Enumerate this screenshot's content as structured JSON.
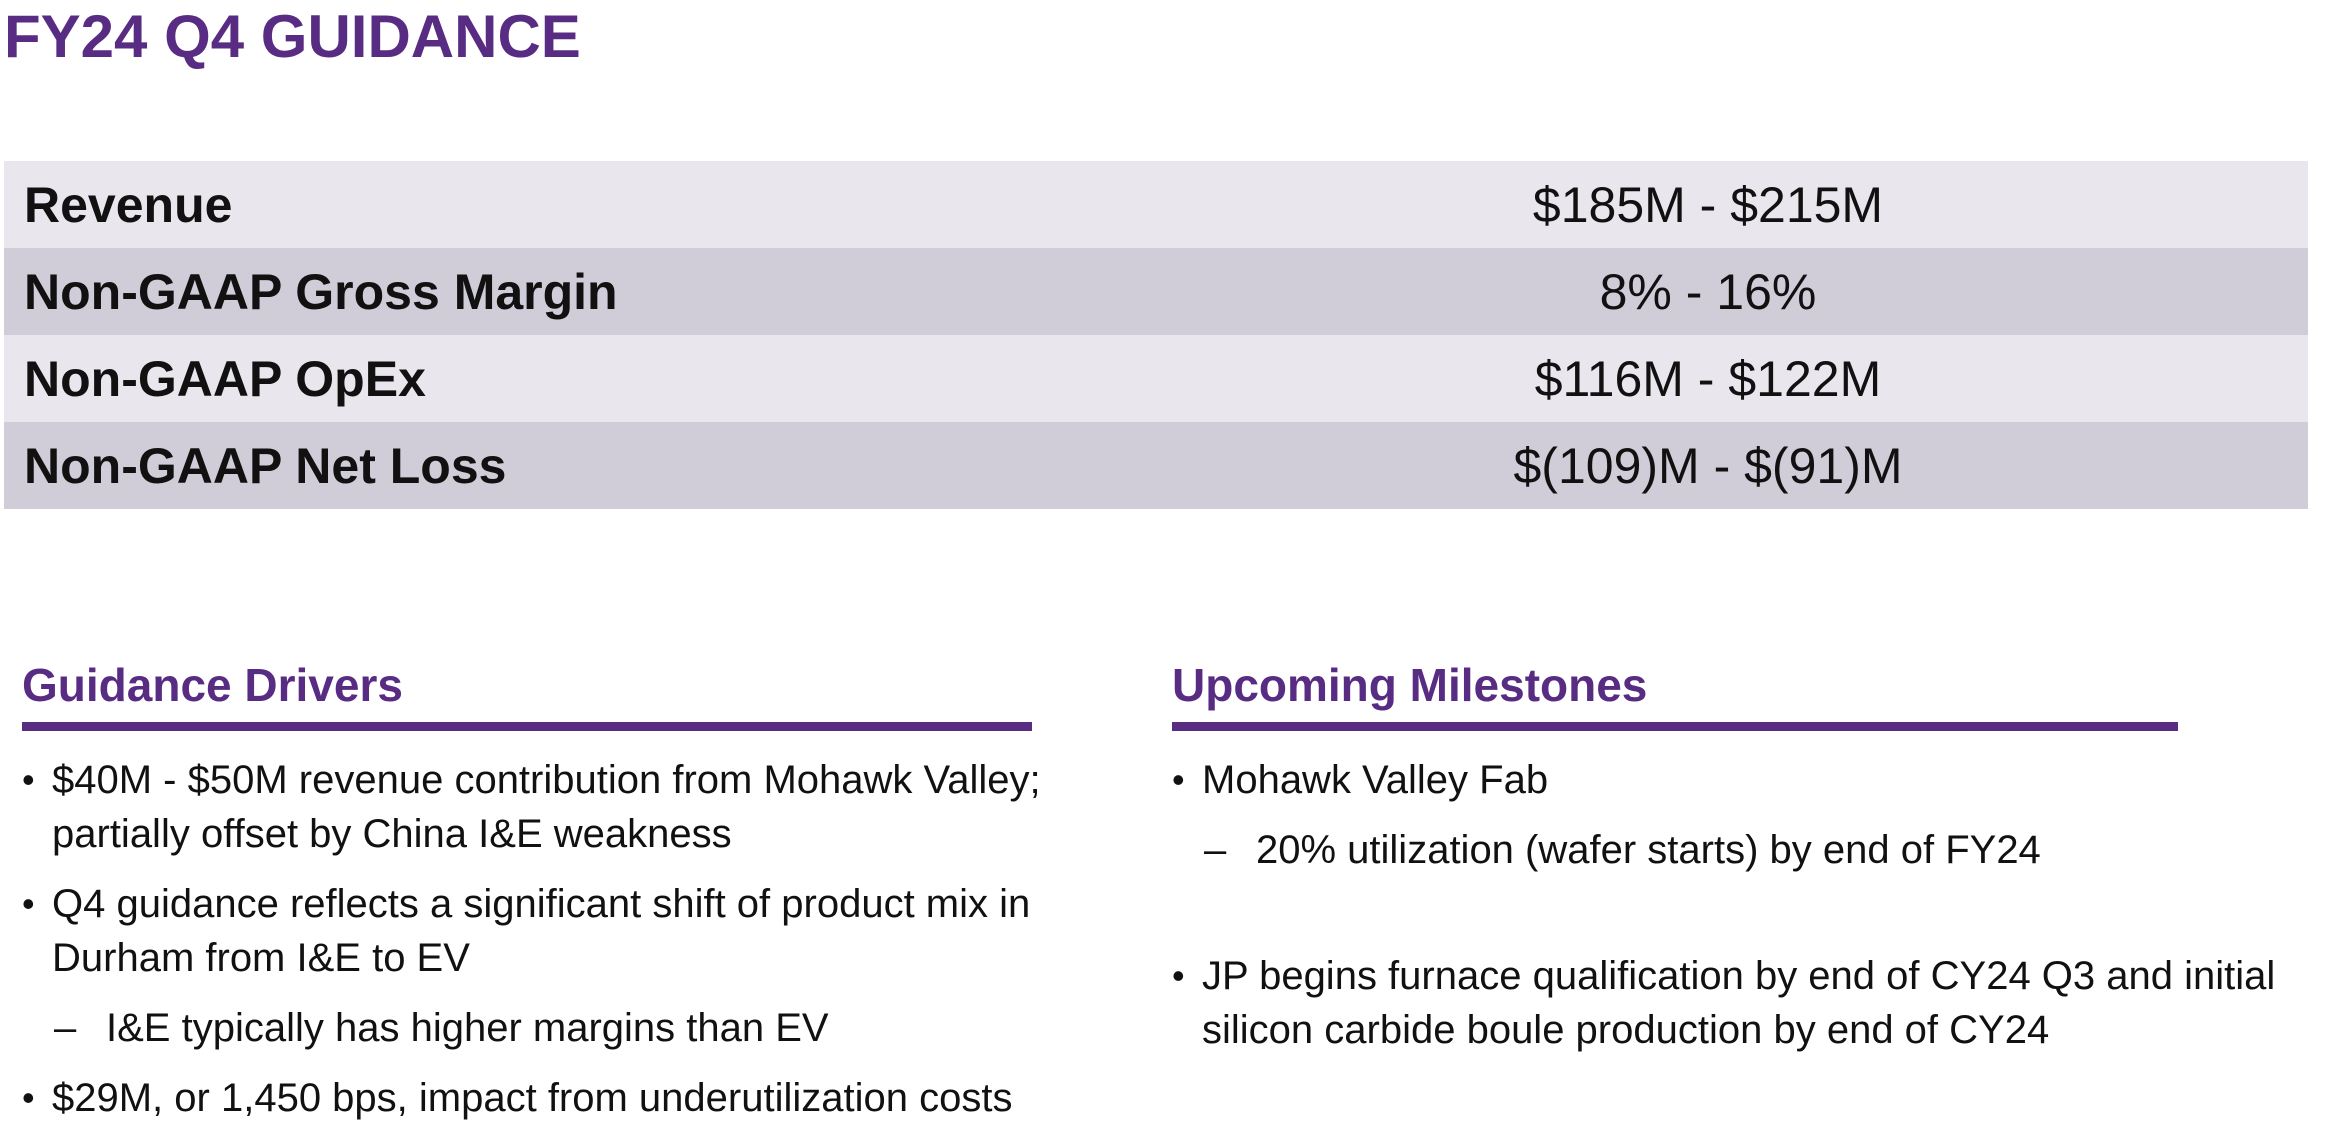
{
  "title": "FY24 Q4 GUIDANCE",
  "colors": {
    "accent": "#582c83",
    "row_light": "#e9e6ed",
    "row_dark": "#d0ccd8"
  },
  "guidance_table": [
    {
      "label": "Revenue",
      "value": "$185M - $215M"
    },
    {
      "label": "Non-GAAP Gross Margin",
      "value": "8% - 16%"
    },
    {
      "label": "Non-GAAP OpEx",
      "value": "$116M - $122M"
    },
    {
      "label": "Non-GAAP Net Loss",
      "value": "$(109)M - $(91)M"
    }
  ],
  "guidance_drivers": {
    "heading": "Guidance Drivers",
    "bullets": [
      {
        "line1": "$40M - $50M revenue contribution from Mohawk Valley;",
        "line2": "partially offset by China I&E weakness"
      },
      {
        "line1": "Q4 guidance reflects a significant shift of product mix in",
        "line2": "Durham from I&E to EV"
      },
      {
        "sub": "I&E typically has higher margins than EV"
      },
      {
        "line1": "$29M, or 1,450 bps, impact from underutilization costs"
      }
    ]
  },
  "upcoming_milestones": {
    "heading": "Upcoming Milestones",
    "bullets": [
      {
        "line1": "Mohawk Valley Fab"
      },
      {
        "sub": "20% utilization (wafer starts) by end of FY24"
      },
      {
        "line1": "JP begins furnace qualification by end of CY24 Q3 and initial",
        "line2": "silicon carbide boule production by end of CY24"
      }
    ]
  },
  "glyphs": {
    "bullet": "•",
    "dash": "–"
  }
}
